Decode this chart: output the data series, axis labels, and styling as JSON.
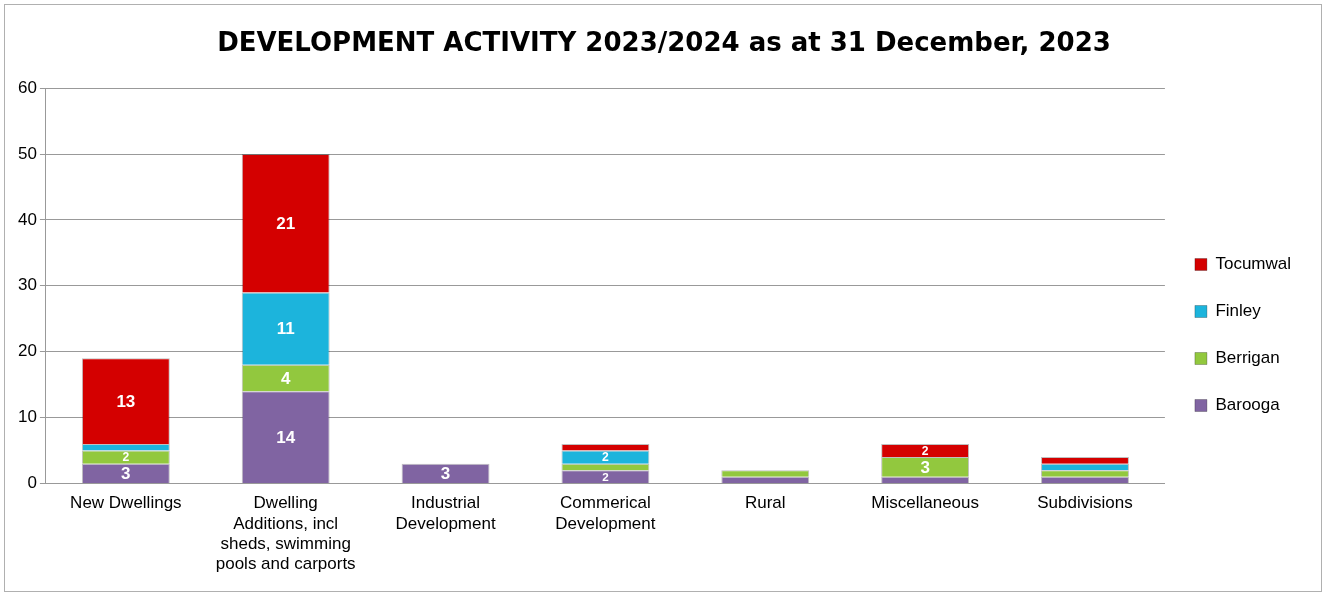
{
  "chart_data": {
    "type": "bar",
    "title": "DEVELOPMENT ACTIVITY 2023/2024 as at 31 December, 2023",
    "categories": [
      "New Dwellings",
      "Dwelling Additions, incl sheds, swimming pools and carports",
      "Industrial Development",
      "Commerical Development",
      "Rural",
      "Miscellaneous",
      "Subdivisions"
    ],
    "series": [
      {
        "name": "Barooga",
        "color": "#8064a2",
        "values": [
          3,
          14,
          3,
          2,
          1,
          1,
          1
        ],
        "value_labels": [
          "3",
          "14",
          "3",
          "2",
          null,
          null,
          null
        ]
      },
      {
        "name": "Berrigan",
        "color": "#92c83e",
        "values": [
          2,
          4,
          0,
          1,
          1,
          3,
          1
        ],
        "value_labels": [
          "2",
          "4",
          null,
          null,
          null,
          "3",
          null
        ]
      },
      {
        "name": "Finley",
        "color": "#1cb4dc",
        "values": [
          1,
          11,
          0,
          2,
          0,
          0,
          1
        ],
        "value_labels": [
          null,
          "11",
          null,
          "2",
          null,
          null,
          null
        ]
      },
      {
        "name": "Tocumwal",
        "color": "#d40000",
        "values": [
          13,
          21,
          0,
          1,
          0,
          2,
          1
        ],
        "value_labels": [
          "13",
          "21",
          null,
          null,
          null,
          "2",
          null
        ]
      }
    ],
    "stacked": true,
    "ylim": [
      0,
      60
    ],
    "yticks": [
      0,
      10,
      20,
      30,
      40,
      50,
      60
    ],
    "grid": "y",
    "legend": "right"
  }
}
